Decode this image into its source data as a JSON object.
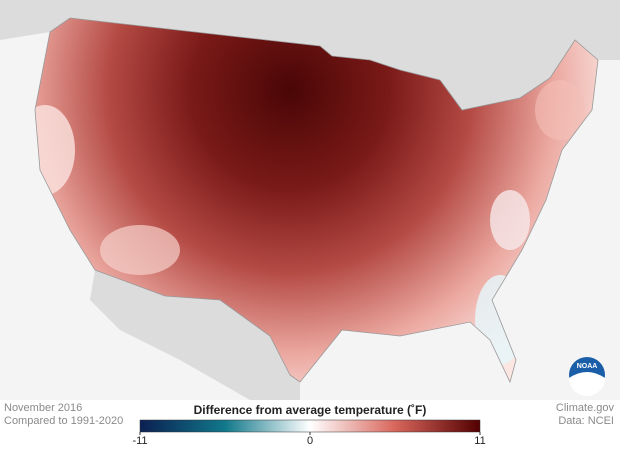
{
  "map": {
    "date": "November 2016",
    "baseline": "Compared to 1991-2020",
    "credit": "Climate.gov",
    "source": "Data: NCEI",
    "logo": "NOAA"
  },
  "legend": {
    "title": "Difference from average temperature (˚F)",
    "range": [
      -11,
      11
    ],
    "ticks": [
      -11,
      0,
      11
    ]
  }
}
